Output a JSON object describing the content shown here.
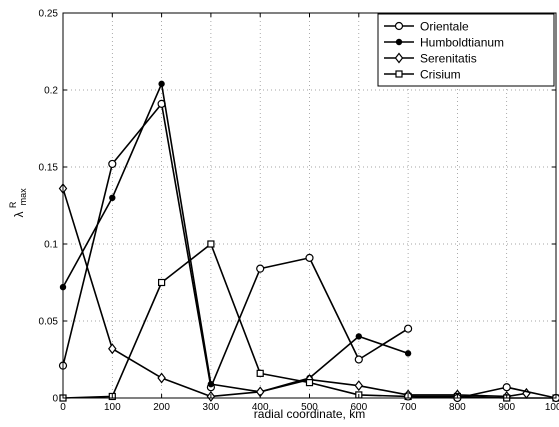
{
  "chart_data": {
    "type": "line",
    "title": "",
    "xlabel": "radial coordinate, km",
    "ylabel_base": "λ",
    "ylabel_sup": "R",
    "ylabel_sub": "max",
    "xlim": [
      0,
      1000
    ],
    "ylim": [
      0,
      0.25
    ],
    "xticks": [
      0,
      100,
      200,
      300,
      400,
      500,
      600,
      700,
      800,
      900,
      1000
    ],
    "xtick_labels": [
      "0",
      "100",
      "200",
      "300",
      "400",
      "500",
      "600",
      "700",
      "800",
      "900",
      "1000"
    ],
    "yticks": [
      0,
      0.05,
      0.1,
      0.15,
      0.2,
      0.25
    ],
    "ytick_labels": [
      "0",
      "0.05",
      "0.1",
      "0.15",
      "0.2",
      "0.25"
    ],
    "grid": "dotted",
    "legend_position": "top-right",
    "series": [
      {
        "name": "Orientale",
        "marker": "circle",
        "color": "#000000",
        "x": [
          0,
          100,
          200,
          300,
          400,
          500,
          600,
          700
        ],
        "y": [
          0.021,
          0.152,
          0.191,
          0.007,
          0.084,
          0.091,
          0.025,
          0.045
        ]
      },
      {
        "name": "Humboldtianum",
        "marker": "dot",
        "color": "#000000",
        "x": [
          0,
          100,
          200,
          300,
          400,
          500,
          600,
          700
        ],
        "y": [
          0.072,
          0.13,
          0.204,
          0.009,
          0.004,
          0.013,
          0.04,
          0.029
        ]
      },
      {
        "name": "Serenitatis",
        "marker": "diamond",
        "color": "#000000",
        "x": [
          0,
          100,
          200,
          300,
          400,
          500,
          600,
          700,
          800,
          900,
          940
        ],
        "y": [
          0.136,
          0.032,
          0.013,
          0.001,
          0.004,
          0.012,
          0.008,
          0.002,
          0.002,
          0.001,
          0.003
        ]
      },
      {
        "name": "Crisium",
        "marker": "square",
        "color": "#000000",
        "x": [
          0,
          100,
          200,
          300,
          400,
          500,
          600,
          700,
          800,
          900,
          1000
        ],
        "y": [
          0.0,
          0.001,
          0.075,
          0.1,
          0.016,
          0.01,
          0.002,
          0.001,
          0.001,
          0.0,
          0.0
        ]
      },
      {
        "name": "",
        "marker": "circle",
        "color": "#000000",
        "x": [
          700,
          800,
          900,
          1000
        ],
        "y": [
          0.001,
          0.0,
          0.007,
          0.0
        ]
      }
    ]
  }
}
